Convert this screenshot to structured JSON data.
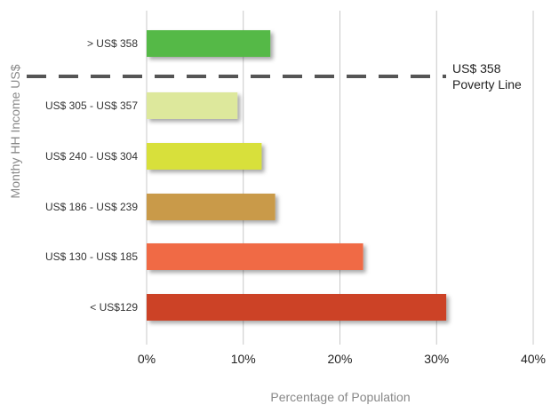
{
  "chart_data": {
    "type": "bar",
    "orientation": "horizontal",
    "categories": [
      "> US$ 358",
      "US$ 305 - US$ 357",
      "US$ 240 - US$ 304",
      "US$ 186 - US$ 239",
      "US$ 130 - US$ 185",
      "< US$129"
    ],
    "values": [
      12.8,
      9.4,
      11.9,
      13.3,
      22.4,
      31.0
    ],
    "colors": [
      "#55b947",
      "#dde89c",
      "#d8e03a",
      "#c99a48",
      "#f06a44",
      "#cc4227"
    ],
    "xlabel": "Percentage of Population",
    "ylabel": "Monthy HH Income US$",
    "xlim": [
      0,
      40
    ],
    "xticks": [
      0,
      10,
      20,
      30,
      40
    ],
    "xtick_labels": [
      "0%",
      "10%",
      "20%",
      "30%",
      "40%"
    ],
    "grid": "vertical",
    "reference_line": {
      "label_line1": "US$ 358",
      "label_line2": "Poverty Line",
      "style": "dashed",
      "position": "between > US$ 358 and US$ 305 - US$ 357"
    }
  }
}
